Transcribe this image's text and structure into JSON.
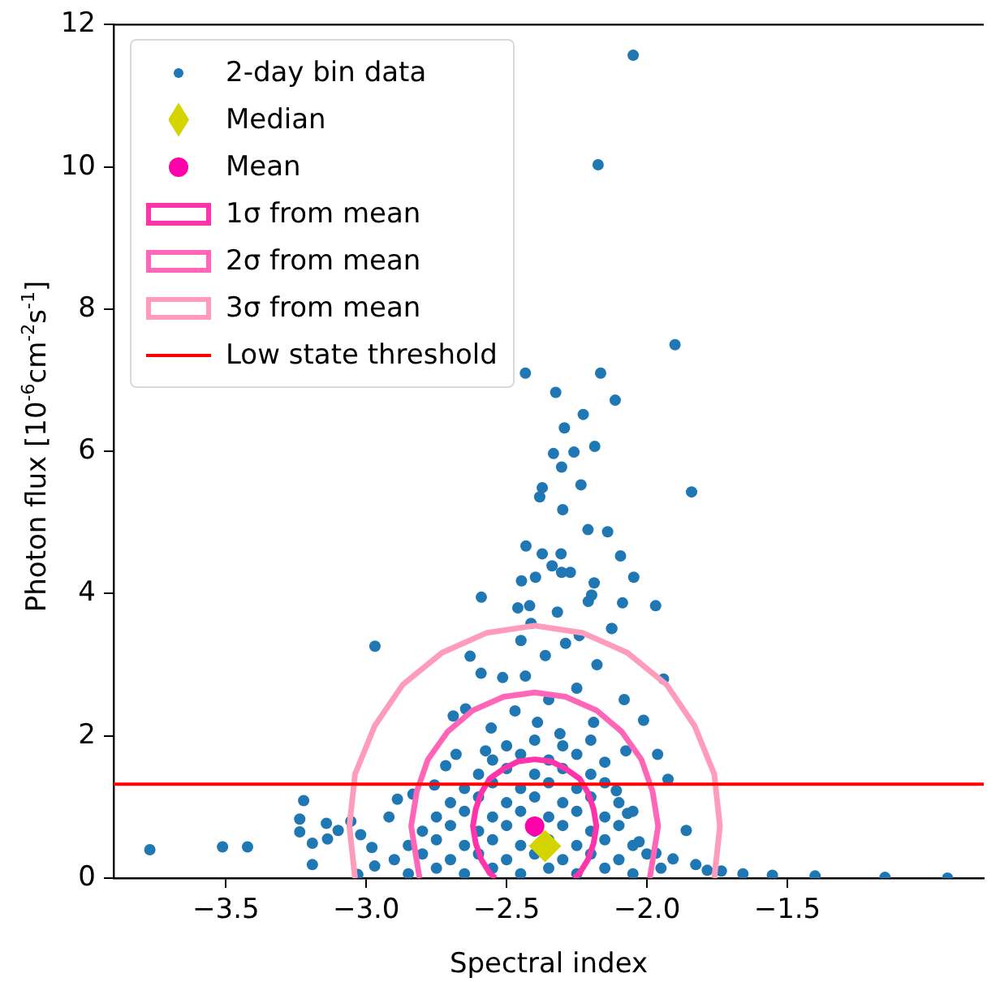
{
  "chart_data": {
    "type": "scatter",
    "xlabel": "Spectral index",
    "ylabel": "Photon flux [10$^{-6}$cm$^{-2}$s$^{-1}$]",
    "xlim": [
      -3.9,
      -0.8
    ],
    "xticks": [
      {
        "value": -3.5,
        "label": "−3.5"
      },
      {
        "value": -3.0,
        "label": "−3.0"
      },
      {
        "value": -2.5,
        "label": "−2.5"
      },
      {
        "value": -2.0,
        "label": "−2.0"
      },
      {
        "value": -1.5,
        "label": "−1.5"
      }
    ],
    "ylim": [
      0,
      12
    ],
    "yticks": [
      0,
      2,
      4,
      6,
      8,
      10,
      12
    ],
    "grid": false,
    "legend": "top left",
    "series": [
      {
        "name": "2-day bin data",
        "type": "scatter",
        "marker": "circle",
        "color": "#1f77b4",
        "x": [
          -2.049,
          -2.174,
          -2.433,
          -1.9,
          -2.165,
          -2.325,
          -2.113,
          -2.227,
          -2.294,
          -2.333,
          -2.26,
          -2.186,
          -2.304,
          -1.841,
          -2.373,
          -2.382,
          -2.235,
          -2.3,
          -2.21,
          -2.14,
          -2.431,
          -2.373,
          -2.306,
          -2.094,
          -2.338,
          -2.304,
          -2.273,
          -2.047,
          -2.447,
          -2.397,
          -2.188,
          -2.197,
          -2.59,
          -2.209,
          -2.087,
          -1.969,
          -2.46,
          -2.418,
          -2.319,
          -2.125,
          -2.969,
          -3.771,
          -3.512,
          -3.423,
          -3.192,
          -3.192,
          -3.237,
          -3.237,
          -3.223,
          -3.142,
          -3.138,
          -3.1,
          -3.055,
          -3.03,
          -2.97,
          -1.658,
          -1.553,
          -1.401,
          -1.152,
          -0.929,
          -1.735,
          -1.86,
          -1.925,
          -1.962,
          -1.941,
          -2.012,
          -2.075,
          -2.081,
          -2.126,
          -2.178,
          -2.241,
          -2.29,
          -2.362,
          -2.413,
          -2.449,
          -2.514,
          -2.591,
          -2.63,
          -2.646,
          -2.69,
          -2.68,
          -2.717,
          -2.757,
          -2.834,
          -2.889,
          -2.919,
          -3.02,
          -2.98,
          -2.19,
          -2.25,
          -2.35,
          -2.433,
          -2.47,
          -2.555,
          -2.575,
          -2.39,
          -2.31,
          -2.15,
          -2.109,
          -2.069,
          -2.028,
          -1.968,
          -1.907,
          -1.826,
          -1.785,
          -2.85,
          -2.75,
          -2.65,
          -2.55,
          -2.45,
          -2.35,
          -2.25,
          -2.15,
          -2.05,
          -1.95,
          -2.9,
          -2.8,
          -2.7,
          -2.6,
          -2.5,
          -2.4,
          -2.3,
          -2.2,
          -2.1,
          -2.0,
          -2.85,
          -2.75,
          -2.65,
          -2.55,
          -2.45,
          -2.35,
          -2.25,
          -2.15,
          -2.05,
          -2.8,
          -2.7,
          -2.6,
          -2.5,
          -2.4,
          -2.3,
          -2.2,
          -2.1,
          -2.75,
          -2.65,
          -2.55,
          -2.45,
          -2.35,
          -2.25,
          -2.15,
          -2.05,
          -2.7,
          -2.6,
          -2.5,
          -2.4,
          -2.3,
          -2.2,
          -2.1,
          -2.65,
          -2.55,
          -2.45,
          -2.35,
          -2.25,
          -2.15,
          -2.6,
          -2.5,
          -2.4,
          -2.3,
          -2.2,
          -2.55,
          -2.45,
          -2.35,
          -2.25,
          -2.5,
          -2.4,
          -2.3,
          -2.2
        ],
        "values": [
          11.57,
          10.03,
          7.1,
          7.5,
          7.1,
          6.83,
          6.72,
          6.52,
          6.33,
          5.97,
          5.99,
          6.07,
          5.78,
          5.43,
          5.49,
          5.36,
          5.53,
          5.18,
          4.9,
          4.87,
          4.67,
          4.56,
          4.56,
          4.53,
          4.39,
          4.3,
          4.3,
          4.23,
          4.18,
          4.23,
          4.15,
          3.98,
          3.95,
          3.89,
          3.87,
          3.83,
          3.8,
          3.83,
          3.74,
          3.51,
          3.26,
          0.4,
          0.44,
          0.44,
          0.19,
          0.49,
          0.83,
          0.65,
          1.09,
          0.77,
          0.55,
          0.67,
          0.8,
          0.05,
          0.17,
          0.06,
          0.04,
          0.03,
          0.01,
          0.0,
          0.1,
          0.67,
          1.39,
          1.74,
          2.8,
          2.22,
          1.79,
          2.51,
          3.51,
          3.0,
          3.41,
          3.3,
          3.13,
          3.58,
          3.34,
          2.82,
          2.88,
          3.12,
          2.38,
          2.28,
          1.74,
          1.58,
          1.31,
          1.18,
          1.11,
          0.86,
          0.61,
          0.43,
          2.19,
          2.67,
          2.51,
          2.84,
          2.35,
          2.11,
          1.79,
          2.19,
          2.03,
          1.63,
          1.23,
          0.91,
          0.51,
          0.35,
          0.27,
          0.19,
          0.11,
          0.06,
          0.14,
          0.06,
          0.14,
          0.06,
          0.14,
          0.06,
          0.14,
          0.06,
          0.14,
          0.26,
          0.34,
          0.26,
          0.34,
          0.26,
          0.34,
          0.26,
          0.34,
          0.26,
          0.34,
          0.46,
          0.54,
          0.46,
          0.54,
          0.46,
          0.54,
          0.46,
          0.54,
          0.46,
          0.66,
          0.74,
          0.66,
          0.74,
          0.66,
          0.74,
          0.66,
          0.74,
          0.86,
          0.94,
          0.86,
          0.94,
          0.86,
          0.94,
          0.86,
          0.94,
          1.06,
          1.14,
          1.06,
          1.14,
          1.06,
          1.14,
          1.06,
          1.26,
          1.34,
          1.26,
          1.34,
          1.26,
          1.34,
          1.46,
          1.54,
          1.46,
          1.54,
          1.46,
          1.66,
          1.74,
          1.66,
          1.74,
          1.86,
          1.94,
          1.86,
          1.94
        ]
      },
      {
        "name": "Median",
        "type": "scatter",
        "marker": "diamond",
        "color": "#d4d400",
        "x": [
          -2.363
        ],
        "values": [
          0.45
        ]
      },
      {
        "name": "Mean",
        "type": "scatter",
        "marker": "circle",
        "color": "#ff00aa",
        "x": [
          -2.4
        ],
        "values": [
          0.73
        ]
      },
      {
        "name": "1σ from mean",
        "type": "line",
        "marker": "none",
        "color": "#ff33aa",
        "x": [
          -2.26,
          -2.24,
          -2.21,
          -2.19,
          -2.18,
          -2.19,
          -2.21,
          -2.24,
          -2.29,
          -2.34,
          -2.4,
          -2.46,
          -2.51,
          -2.56,
          -2.59,
          -2.61,
          -2.62,
          -2.61,
          -2.59,
          -2.56,
          -2.54
        ],
        "values": [
          0.0,
          0.07,
          0.26,
          0.49,
          0.73,
          0.97,
          1.2,
          1.4,
          1.54,
          1.64,
          1.67,
          1.64,
          1.54,
          1.4,
          1.2,
          0.97,
          0.73,
          0.49,
          0.26,
          0.07,
          0.0
        ]
      },
      {
        "name": "2σ from mean",
        "type": "line",
        "marker": "none",
        "color": "#ff66b8",
        "x": [
          -1.99,
          -1.98,
          -1.96,
          -1.98,
          -2.02,
          -2.09,
          -2.18,
          -2.29,
          -2.4,
          -2.51,
          -2.62,
          -2.71,
          -2.78,
          -2.82,
          -2.84,
          -2.82,
          -2.81
        ],
        "values": [
          0.0,
          0.24,
          0.73,
          1.22,
          1.67,
          2.06,
          2.36,
          2.55,
          2.61,
          2.55,
          2.36,
          2.06,
          1.67,
          1.22,
          0.73,
          0.24,
          0.0
        ]
      },
      {
        "name": "3σ from mean",
        "type": "line",
        "marker": "none",
        "color": "#ff9cbb",
        "x": [
          -1.76,
          -1.74,
          -1.76,
          -1.83,
          -1.93,
          -2.07,
          -2.23,
          -2.4,
          -2.57,
          -2.73,
          -2.87,
          -2.97,
          -3.04,
          -3.06,
          -3.04
        ],
        "values": [
          0.0,
          0.73,
          1.46,
          2.14,
          2.72,
          3.17,
          3.45,
          3.55,
          3.45,
          3.17,
          2.72,
          2.14,
          1.46,
          0.73,
          0.0
        ]
      }
    ],
    "ref_lines": [
      {
        "axis": "y",
        "value": 1.32,
        "label": "Low state threshold",
        "color": "#ff0000"
      }
    ]
  }
}
